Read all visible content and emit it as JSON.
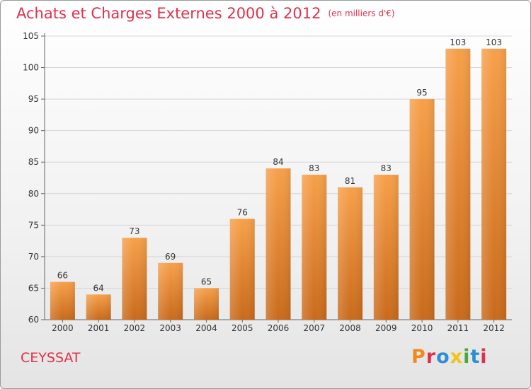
{
  "header": {
    "title": "Achats et Charges Externes 2000 à 2012",
    "subtitle": "(en milliers d'€)"
  },
  "footer": {
    "location": "CEYSSAT",
    "brand": "Proxiti",
    "brand_colors": [
      "#f08a1c",
      "#e0314b",
      "#2b8fd6",
      "#f0c419",
      "#49a83b",
      "#2b8fd6",
      "#e0314b"
    ]
  },
  "colors": {
    "title": "#e0314b",
    "bar_top": "#f7a04a",
    "bar_bottom": "#c96a1b"
  },
  "chart_data": {
    "type": "bar",
    "categories": [
      "2000",
      "2001",
      "2002",
      "2003",
      "2004",
      "2005",
      "2006",
      "2007",
      "2008",
      "2009",
      "2010",
      "2011",
      "2012"
    ],
    "values": [
      66,
      64,
      73,
      69,
      65,
      76,
      84,
      83,
      81,
      83,
      95,
      103,
      103
    ],
    "value_labels": [
      "66",
      "64",
      "73",
      "69",
      "65",
      "76",
      "84",
      "83",
      "81",
      "83",
      "95",
      "103",
      "103"
    ],
    "title": "Achats et Charges Externes 2000 à 2012",
    "unit": "(en milliers d'€)",
    "ylim": [
      60,
      105
    ],
    "yticks": [
      60,
      65,
      70,
      75,
      80,
      85,
      90,
      95,
      100,
      105
    ],
    "ytick_labels": [
      "60",
      "65",
      "70",
      "75",
      "80",
      "85",
      "90",
      "95",
      "100",
      "105"
    ],
    "grid": true
  }
}
